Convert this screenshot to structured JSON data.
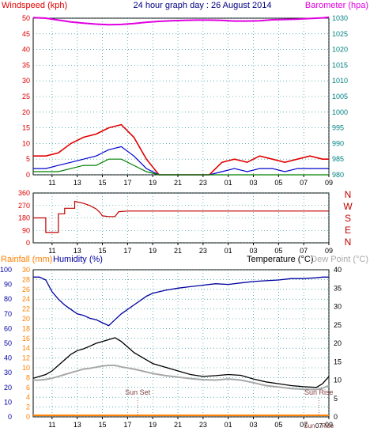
{
  "title": "24 hour graph day : 26 August 2014",
  "colors": {
    "wind": "#e00000",
    "wind_avg": "#0000cc",
    "wind_low": "#008000",
    "barometer": "#e000e0",
    "direction": "#c00000",
    "temperature": "#000000",
    "dewpoint": "#a8a8a8",
    "humidity": "#0000a0",
    "rainfall": "#ff8000",
    "title": "#000080",
    "teal": "#008080",
    "grid": "#008080"
  },
  "x_ticks": [
    "11",
    "13",
    "15",
    "17",
    "19",
    "21",
    "23",
    "01",
    "03",
    "05",
    "07",
    "09"
  ],
  "chart_data": [
    {
      "type": "line",
      "left_axis_label": "Windspeed (kph)",
      "right_axis_label": "Barometer (hpa)",
      "left_ticks": [
        0,
        5,
        10,
        15,
        20,
        25,
        30,
        35,
        40,
        45,
        50
      ],
      "right_ticks": [
        980,
        985,
        990,
        995,
        1000,
        1005,
        1010,
        1015,
        1020,
        1025,
        1030
      ],
      "hours": [
        9.5,
        10.5,
        11.5,
        12.5,
        13.5,
        14.5,
        15.5,
        16.5,
        17.5,
        18.5,
        19.5,
        20.5,
        21.5,
        22.5,
        23.5,
        24.5,
        25.5,
        26.5,
        27.5,
        28.5,
        29.5,
        30.5,
        31.5,
        32.5,
        33
      ],
      "wind_gust": [
        6,
        6,
        7,
        10,
        12,
        13,
        15,
        16,
        12,
        5,
        0,
        0,
        0,
        0,
        0,
        4,
        5,
        4,
        6,
        5,
        4,
        5,
        6,
        5,
        5
      ],
      "wind_avg": [
        2,
        2,
        3,
        4,
        5,
        6,
        8,
        9,
        6,
        2,
        0,
        0,
        0,
        0,
        0,
        1,
        2,
        1,
        2,
        2,
        1,
        2,
        2,
        2,
        2
      ],
      "wind_low": [
        1,
        1,
        1,
        2,
        3,
        3,
        5,
        5,
        3,
        1,
        0,
        0,
        0,
        0,
        0,
        0,
        0,
        0,
        0,
        0,
        0,
        0,
        0,
        0,
        0
      ],
      "barometer": [
        1030.2,
        1030.0,
        1029.4,
        1028.8,
        1028.4,
        1028.1,
        1027.9,
        1028.0,
        1028.3,
        1028.7,
        1029.0,
        1029.2,
        1029.3,
        1029.4,
        1029.4,
        1029.3,
        1029.1,
        1029.1,
        1029.2,
        1029.5,
        1029.6,
        1029.7,
        1029.9,
        1030.1,
        1030.3
      ]
    },
    {
      "type": "line",
      "left_ticks": [
        0,
        90,
        180,
        270,
        360
      ],
      "right_labels": [
        "N",
        "W",
        "S",
        "E",
        "N"
      ],
      "points": [
        [
          9.5,
          180
        ],
        [
          10.5,
          180
        ],
        [
          10.5,
          75
        ],
        [
          11.5,
          75
        ],
        [
          11.5,
          210
        ],
        [
          12.0,
          210
        ],
        [
          12.0,
          250
        ],
        [
          12.8,
          250
        ],
        [
          12.8,
          300
        ],
        [
          13.5,
          285
        ],
        [
          14.0,
          270
        ],
        [
          14.5,
          245
        ],
        [
          14.8,
          220
        ],
        [
          15.0,
          195
        ],
        [
          15.5,
          190
        ],
        [
          16.0,
          190
        ],
        [
          16.3,
          225
        ],
        [
          17.0,
          230
        ],
        [
          33,
          230
        ]
      ]
    },
    {
      "type": "line",
      "left_axis_label": "Rainfall (mm)",
      "left2_axis_label": "Humidity (%)",
      "right_axis_label": "Temperature (°C)",
      "right2_axis_label": "Dew Point (°C)",
      "rain_ticks": [
        0,
        2,
        4,
        6,
        8,
        10,
        12,
        14,
        16,
        18,
        20,
        22,
        24,
        26,
        28,
        30
      ],
      "humidity_ticks": [
        0,
        10,
        20,
        30,
        40,
        50,
        60,
        70,
        80,
        90,
        100
      ],
      "temp_ticks": [
        0,
        5,
        10,
        15,
        20,
        25,
        30,
        35,
        40
      ],
      "hours": [
        9.5,
        10,
        10.5,
        11,
        11.5,
        12,
        12.5,
        13,
        13.5,
        14,
        14.5,
        15,
        15.5,
        16,
        16.5,
        17,
        17.5,
        18,
        18.5,
        19,
        20,
        21,
        22,
        23,
        24,
        25,
        26,
        27,
        28,
        29,
        30,
        31,
        32,
        32.5,
        33
      ],
      "temperature": [
        10.5,
        11,
        11.5,
        12.5,
        14,
        15.5,
        17,
        18,
        18.5,
        19.2,
        20,
        20.5,
        21,
        21.5,
        20.5,
        19,
        17.5,
        16.5,
        15.5,
        14.5,
        13.5,
        12.5,
        11.5,
        11,
        11.2,
        11.5,
        11.3,
        10.3,
        9.5,
        9,
        8.5,
        8.2,
        8.0,
        9,
        11
      ],
      "dewpoint": [
        10,
        10,
        10.2,
        10.5,
        11,
        11.5,
        12,
        12.5,
        13,
        13.2,
        13.5,
        13.8,
        14,
        14,
        13.6,
        13.3,
        13,
        12.6,
        12.2,
        11.8,
        11.2,
        10.8,
        10.4,
        10.1,
        10,
        10.3,
        10,
        9.3,
        8.5,
        8.1,
        7.7,
        7.5,
        7.4,
        7.8,
        8.5
      ],
      "humidity": [
        95,
        95,
        93,
        85,
        80,
        76,
        73,
        70,
        69,
        67,
        66,
        64,
        62,
        66,
        70,
        73,
        76,
        79,
        82,
        84,
        86,
        87.5,
        88.5,
        89.5,
        90.5,
        90,
        91,
        92,
        92.5,
        93,
        94,
        94,
        94.5,
        95,
        95
      ],
      "rainfall": [
        0.3,
        0.3,
        0.3,
        0.3,
        0.3,
        0.3,
        0.3,
        0.3,
        0.3,
        0.3,
        0.3,
        0.3,
        0.3,
        0.3,
        0.3,
        0.3,
        0.3,
        0.3,
        0.3,
        0.3,
        0.3,
        0.3,
        0.3,
        0.3,
        0.3,
        0.3,
        0.3,
        0.3,
        0.3,
        0.3,
        0.3,
        0.3,
        0.3,
        0.3,
        0.3
      ],
      "annotations": [
        {
          "text": "Sun Set",
          "hour": 17.8
        },
        {
          "text": "Sun Rise",
          "hour": 32.2
        }
      ],
      "bottom_marker_labels": [
        "Sun",
        "07",
        "Rise"
      ]
    }
  ]
}
